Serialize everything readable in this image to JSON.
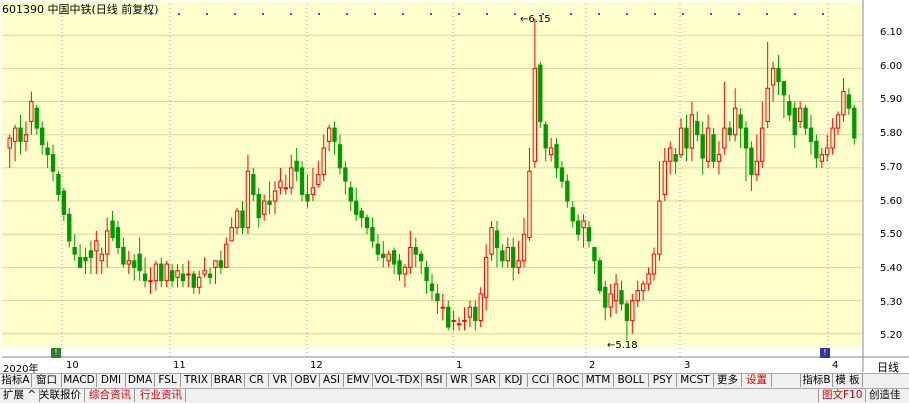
{
  "title": "601390 中国中铁(日线 前复权)",
  "high_label": "6.15",
  "low_label": "5.18",
  "period_label": "日线",
  "y_ticks": [
    "6.10",
    "6.00",
    "5.90",
    "5.80",
    "5.70",
    "5.60",
    "5.50",
    "5.40",
    "5.30",
    "5.20"
  ],
  "date_ticks": [
    "2020年",
    "10",
    "11",
    "12",
    "1",
    "2",
    "3",
    "4"
  ],
  "indicator_tabs": [
    {
      "label": "指标A"
    },
    {
      "label": "窗口"
    },
    {
      "label": "MACD"
    },
    {
      "label": "DMI"
    },
    {
      "label": "DMA"
    },
    {
      "label": "FSL"
    },
    {
      "label": "TRIX"
    },
    {
      "label": "BRAR"
    },
    {
      "label": "CR"
    },
    {
      "label": "VR"
    },
    {
      "label": "OBV"
    },
    {
      "label": "ASI"
    },
    {
      "label": "EMV"
    },
    {
      "label": "VOL-TDX"
    },
    {
      "label": "RSI"
    },
    {
      "label": "WR"
    },
    {
      "label": "SAR"
    },
    {
      "label": "KDJ"
    },
    {
      "label": "CCI"
    },
    {
      "label": "ROC"
    },
    {
      "label": "MTM"
    },
    {
      "label": "BOLL"
    },
    {
      "label": "PSY"
    },
    {
      "label": "MCST"
    },
    {
      "label": "更多"
    },
    {
      "label": "设置"
    },
    {
      "label": "指标B"
    },
    {
      "label": "模 板"
    }
  ],
  "bottom_tabs": [
    {
      "label": "扩展 ^"
    },
    {
      "label": "关联报价"
    },
    {
      "label": "综合资讯"
    },
    {
      "label": "行业资讯"
    }
  ],
  "bottom_right": "图文F10",
  "bottom_right2": "创造佳",
  "colors": {
    "up": "#ff0000",
    "down": "#009900",
    "bg": "#ffffcc",
    "grid": "#d8d890"
  },
  "chart_data": {
    "type": "candlestick",
    "ylim": [
      5.16,
      6.17
    ],
    "high": 6.15,
    "low": 5.18,
    "candles": [
      [
        5.76,
        5.79,
        5.8,
        5.7
      ],
      [
        5.78,
        5.82,
        5.83,
        5.72
      ],
      [
        5.82,
        5.78,
        5.86,
        5.74
      ],
      [
        5.78,
        5.8,
        5.84,
        5.75
      ],
      [
        5.84,
        5.9,
        5.93,
        5.8
      ],
      [
        5.88,
        5.82,
        5.89,
        5.8
      ],
      [
        5.82,
        5.77,
        5.84,
        5.74
      ],
      [
        5.76,
        5.74,
        5.78,
        5.7
      ],
      [
        5.74,
        5.69,
        5.77,
        5.66
      ],
      [
        5.68,
        5.62,
        5.69,
        5.6
      ],
      [
        5.63,
        5.56,
        5.64,
        5.54
      ],
      [
        5.56,
        5.48,
        5.58,
        5.46
      ],
      [
        5.46,
        5.44,
        5.5,
        5.42
      ],
      [
        5.43,
        5.4,
        5.47,
        5.4
      ],
      [
        5.43,
        5.42,
        5.46,
        5.38
      ],
      [
        5.45,
        5.43,
        5.48,
        5.38
      ],
      [
        5.45,
        5.48,
        5.51,
        5.38
      ],
      [
        5.42,
        5.44,
        5.46,
        5.38
      ],
      [
        5.44,
        5.51,
        5.55,
        5.4
      ],
      [
        5.54,
        5.49,
        5.57,
        5.48
      ],
      [
        5.52,
        5.46,
        5.54,
        5.44
      ],
      [
        5.46,
        5.41,
        5.49,
        5.4
      ],
      [
        5.41,
        5.42,
        5.45,
        5.38
      ],
      [
        5.42,
        5.4,
        5.44,
        5.36
      ],
      [
        5.44,
        5.39,
        5.49,
        5.36
      ],
      [
        5.38,
        5.36,
        5.43,
        5.34
      ],
      [
        5.36,
        5.36,
        5.4,
        5.32
      ],
      [
        5.36,
        5.41,
        5.42,
        5.33
      ],
      [
        5.41,
        5.36,
        5.43,
        5.34
      ],
      [
        5.36,
        5.41,
        5.42,
        5.34
      ],
      [
        5.39,
        5.36,
        5.41,
        5.34
      ],
      [
        5.37,
        5.39,
        5.41,
        5.34
      ],
      [
        5.38,
        5.36,
        5.41,
        5.34
      ],
      [
        5.38,
        5.38,
        5.42,
        5.34
      ],
      [
        5.38,
        5.34,
        5.39,
        5.32
      ],
      [
        5.34,
        5.37,
        5.39,
        5.32
      ],
      [
        5.38,
        5.39,
        5.43,
        5.37
      ],
      [
        5.38,
        5.37,
        5.4,
        5.35
      ],
      [
        5.4,
        5.42,
        5.42,
        5.35
      ],
      [
        5.42,
        5.4,
        5.45,
        5.38
      ],
      [
        5.4,
        5.47,
        5.49,
        5.4
      ],
      [
        5.48,
        5.52,
        5.55,
        5.48
      ],
      [
        5.52,
        5.57,
        5.58,
        5.5
      ],
      [
        5.57,
        5.52,
        5.6,
        5.5
      ],
      [
        5.52,
        5.69,
        5.74,
        5.5
      ],
      [
        5.68,
        5.62,
        5.7,
        5.6
      ],
      [
        5.62,
        5.55,
        5.64,
        5.52
      ],
      [
        5.56,
        5.6,
        5.62,
        5.54
      ],
      [
        5.6,
        5.59,
        5.66,
        5.56
      ],
      [
        5.6,
        5.63,
        5.66,
        5.56
      ],
      [
        5.64,
        5.66,
        5.7,
        5.62
      ],
      [
        5.64,
        5.64,
        5.68,
        5.62
      ],
      [
        5.64,
        5.7,
        5.74,
        5.62
      ],
      [
        5.72,
        5.69,
        5.76,
        5.66
      ],
      [
        5.7,
        5.62,
        5.72,
        5.6
      ],
      [
        5.62,
        5.6,
        5.68,
        5.58
      ],
      [
        5.62,
        5.64,
        5.7,
        5.6
      ],
      [
        5.65,
        5.68,
        5.72,
        5.64
      ],
      [
        5.68,
        5.76,
        5.8,
        5.66
      ],
      [
        5.78,
        5.82,
        5.83,
        5.75
      ],
      [
        5.82,
        5.78,
        5.84,
        5.74
      ],
      [
        5.77,
        5.7,
        5.8,
        5.68
      ],
      [
        5.7,
        5.66,
        5.72,
        5.62
      ],
      [
        5.64,
        5.6,
        5.66,
        5.57
      ],
      [
        5.6,
        5.56,
        5.64,
        5.54
      ],
      [
        5.57,
        5.55,
        5.58,
        5.52
      ],
      [
        5.55,
        5.52,
        5.56,
        5.5
      ],
      [
        5.52,
        5.48,
        5.55,
        5.46
      ],
      [
        5.47,
        5.44,
        5.5,
        5.42
      ],
      [
        5.44,
        5.43,
        5.48,
        5.4
      ],
      [
        5.42,
        5.44,
        5.45,
        5.4
      ],
      [
        5.45,
        5.41,
        5.46,
        5.38
      ],
      [
        5.42,
        5.38,
        5.44,
        5.36
      ],
      [
        5.38,
        5.4,
        5.41,
        5.34
      ],
      [
        5.4,
        5.46,
        5.51,
        5.38
      ],
      [
        5.46,
        5.44,
        5.49,
        5.4
      ],
      [
        5.44,
        5.42,
        5.45,
        5.38
      ],
      [
        5.4,
        5.36,
        5.42,
        5.32
      ],
      [
        5.35,
        5.33,
        5.38,
        5.3
      ],
      [
        5.32,
        5.3,
        5.35,
        5.26
      ],
      [
        5.28,
        5.28,
        5.32,
        5.24
      ],
      [
        5.28,
        5.22,
        5.3,
        5.21
      ],
      [
        5.24,
        5.24,
        5.27,
        5.21
      ],
      [
        5.23,
        5.23,
        5.25,
        5.21
      ],
      [
        5.24,
        5.24,
        5.28,
        5.21
      ],
      [
        5.25,
        5.28,
        5.3,
        5.22
      ],
      [
        5.28,
        5.24,
        5.3,
        5.21
      ],
      [
        5.24,
        5.32,
        5.34,
        5.22
      ],
      [
        5.31,
        5.43,
        5.47,
        5.27
      ],
      [
        5.44,
        5.52,
        5.54,
        5.42
      ],
      [
        5.51,
        5.46,
        5.54,
        5.4
      ],
      [
        5.45,
        5.42,
        5.47,
        5.4
      ],
      [
        5.42,
        5.46,
        5.49,
        5.4
      ],
      [
        5.46,
        5.4,
        5.49,
        5.36
      ],
      [
        5.4,
        5.42,
        5.48,
        5.38
      ],
      [
        5.42,
        5.5,
        5.55,
        5.4
      ],
      [
        5.49,
        5.69,
        5.76,
        5.48
      ],
      [
        5.72,
        6.0,
        6.15,
        5.7
      ],
      [
        6.01,
        5.84,
        6.02,
        5.82
      ],
      [
        5.83,
        5.76,
        5.84,
        5.72
      ],
      [
        5.74,
        5.76,
        5.79,
        5.72
      ],
      [
        5.77,
        5.7,
        5.79,
        5.67
      ],
      [
        5.7,
        5.66,
        5.72,
        5.64
      ],
      [
        5.66,
        5.6,
        5.68,
        5.58
      ],
      [
        5.58,
        5.54,
        5.6,
        5.52
      ],
      [
        5.54,
        5.5,
        5.56,
        5.48
      ],
      [
        5.52,
        5.54,
        5.56,
        5.46
      ],
      [
        5.52,
        5.48,
        5.54,
        5.46
      ],
      [
        5.46,
        5.42,
        5.46,
        5.38
      ],
      [
        5.42,
        5.33,
        5.43,
        5.32
      ],
      [
        5.34,
        5.28,
        5.36,
        5.24
      ],
      [
        5.28,
        5.32,
        5.35,
        5.25
      ],
      [
        5.3,
        5.35,
        5.38,
        5.26
      ],
      [
        5.33,
        5.29,
        5.36,
        5.27
      ],
      [
        5.29,
        5.24,
        5.3,
        5.18
      ],
      [
        5.24,
        5.3,
        5.32,
        5.2
      ],
      [
        5.3,
        5.33,
        5.36,
        5.28
      ],
      [
        5.33,
        5.35,
        5.36,
        5.3
      ],
      [
        5.35,
        5.38,
        5.4,
        5.33
      ],
      [
        5.38,
        5.44,
        5.46,
        5.36
      ],
      [
        5.44,
        5.6,
        5.72,
        5.42
      ],
      [
        5.62,
        5.72,
        5.76,
        5.6
      ],
      [
        5.72,
        5.76,
        5.78,
        5.68
      ],
      [
        5.74,
        5.72,
        5.76,
        5.68
      ],
      [
        5.74,
        5.82,
        5.85,
        5.73
      ],
      [
        5.82,
        5.76,
        5.86,
        5.72
      ],
      [
        5.76,
        5.86,
        5.9,
        5.72
      ],
      [
        5.84,
        5.8,
        5.87,
        5.78
      ],
      [
        5.8,
        5.73,
        5.84,
        5.68
      ],
      [
        5.72,
        5.82,
        5.86,
        5.7
      ],
      [
        5.8,
        5.72,
        5.82,
        5.7
      ],
      [
        5.72,
        5.74,
        5.78,
        5.68
      ],
      [
        5.76,
        5.82,
        5.96,
        5.74
      ],
      [
        5.82,
        5.8,
        5.84,
        5.78
      ],
      [
        5.8,
        5.88,
        5.94,
        5.78
      ],
      [
        5.86,
        5.82,
        5.88,
        5.76
      ],
      [
        5.82,
        5.76,
        5.84,
        5.66
      ],
      [
        5.76,
        5.68,
        5.78,
        5.63
      ],
      [
        5.68,
        5.72,
        5.8,
        5.66
      ],
      [
        5.72,
        5.82,
        5.9,
        5.7
      ],
      [
        5.84,
        5.94,
        6.08,
        5.82
      ],
      [
        5.95,
        6.0,
        6.02,
        5.9
      ],
      [
        6.0,
        5.96,
        6.04,
        5.92
      ],
      [
        5.96,
        5.92,
        5.96,
        5.85
      ],
      [
        5.9,
        5.86,
        5.92,
        5.84
      ],
      [
        5.88,
        5.8,
        5.9,
        5.76
      ],
      [
        5.84,
        5.88,
        5.9,
        5.82
      ],
      [
        5.88,
        5.82,
        5.89,
        5.8
      ],
      [
        5.82,
        5.78,
        5.86,
        5.74
      ],
      [
        5.78,
        5.73,
        5.8,
        5.7
      ],
      [
        5.72,
        5.74,
        5.76,
        5.7
      ],
      [
        5.74,
        5.76,
        5.8,
        5.72
      ],
      [
        5.76,
        5.82,
        5.85,
        5.74
      ],
      [
        5.82,
        5.86,
        5.87,
        5.8
      ],
      [
        5.86,
        5.93,
        5.97,
        5.84
      ],
      [
        5.92,
        5.88,
        5.94,
        5.86
      ],
      [
        5.88,
        5.79,
        5.89,
        5.77
      ]
    ]
  }
}
